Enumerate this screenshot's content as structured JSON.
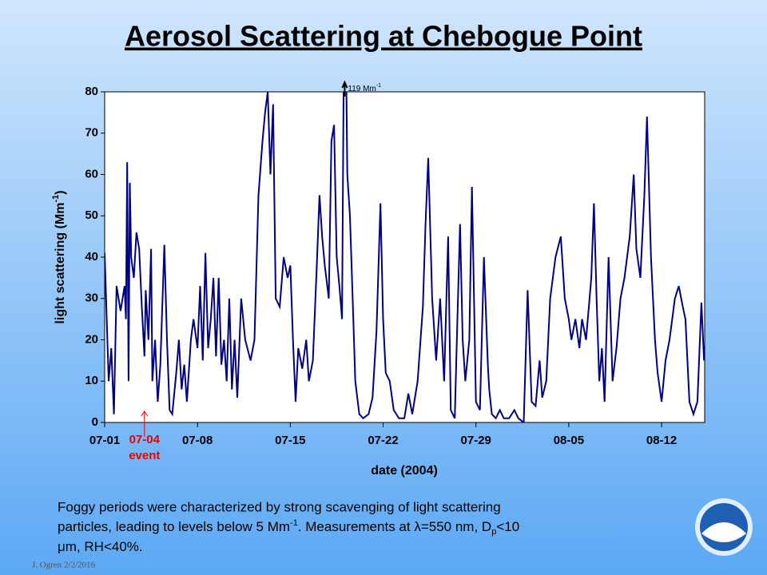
{
  "chart_data": {
    "type": "line",
    "title": "Aerosol Scattering at Chebogue Point",
    "y_label": [
      "light scattering (Mm",
      "-1",
      ")"
    ],
    "x_label": "date (2004)",
    "xlim": [
      0,
      45.25
    ],
    "xticks": [
      {
        "value": 0,
        "label": "07-01"
      },
      {
        "value": 7,
        "label": "07-08"
      },
      {
        "value": 14,
        "label": "07-15"
      },
      {
        "value": 21,
        "label": "07-22"
      },
      {
        "value": 28,
        "label": "07-29"
      },
      {
        "value": 35,
        "label": "08-05"
      },
      {
        "value": 42,
        "label": "08-12"
      }
    ],
    "ylim": [
      0,
      80
    ],
    "yticks": [
      0,
      10,
      20,
      30,
      40,
      50,
      60,
      70,
      80
    ],
    "grid": false,
    "series": [
      {
        "color": "#000080",
        "x": [
          0,
          0.3,
          0.5,
          0.7,
          0.9,
          1.2,
          1.5,
          1.6,
          1.7,
          1.8,
          1.9,
          2.0,
          2.2,
          2.4,
          2.6,
          2.8,
          3,
          3.1,
          3.3,
          3.5,
          3.6,
          3.8,
          4,
          4.2,
          4.5,
          4.7,
          4.9,
          5.1,
          5.4,
          5.6,
          5.8,
          6,
          6.2,
          6.5,
          6.7,
          7,
          7.2,
          7.4,
          7.6,
          7.8,
          8,
          8.2,
          8.4,
          8.6,
          8.8,
          9,
          9.2,
          9.4,
          9.6,
          9.8,
          10,
          10.3,
          10.6,
          11,
          11.3,
          11.6,
          11.9,
          12.1,
          12.3,
          12.5,
          12.7,
          12.9,
          13.2,
          13.5,
          13.8,
          14,
          14.2,
          14.4,
          14.6,
          14.9,
          15.2,
          15.4,
          15.7,
          16,
          16.2,
          16.4,
          16.6,
          16.9,
          17.1,
          17.3,
          17.5,
          17.7,
          17.9,
          18.1,
          18.3,
          18.5,
          18.7,
          18.9,
          19.2,
          19.5,
          19.9,
          20.2,
          20.5,
          20.8,
          21,
          21.2,
          21.5,
          21.8,
          22.2,
          22.6,
          22.9,
          23.2,
          23.6,
          24,
          24.2,
          24.4,
          24.7,
          25,
          25.3,
          25.6,
          25.9,
          26.1,
          26.4,
          26.6,
          26.8,
          27,
          27.2,
          27.5,
          27.7,
          28,
          28.3,
          28.6,
          28.9,
          29,
          29.2,
          29.5,
          29.8,
          30.1,
          30.5,
          30.9,
          31.2,
          31.6,
          31.9,
          32.2,
          32.5,
          32.8,
          33,
          33.3,
          33.6,
          34,
          34.4,
          34.7,
          35,
          35.2,
          35.5,
          35.8,
          36,
          36.3,
          36.7,
          36.9,
          37.1,
          37.3,
          37.5,
          37.7,
          38,
          38.3,
          38.6,
          38.9,
          39.2,
          39.6,
          39.9,
          40.1,
          40.4,
          40.7,
          40.9,
          41.2,
          41.5,
          41.7,
          42,
          42.3,
          42.6,
          43,
          43.3,
          43.6,
          43.8,
          44.1,
          44.4,
          44.7,
          45,
          45.2
        ],
        "values": [
          41,
          10,
          18,
          2,
          33,
          27,
          33,
          25,
          63,
          10,
          58,
          40,
          35,
          46,
          42,
          28,
          16,
          32,
          20,
          42,
          10,
          20,
          5,
          14,
          43,
          20,
          3,
          2,
          12,
          20,
          8,
          14,
          5,
          20,
          25,
          18,
          33,
          15,
          41,
          18,
          25,
          35,
          16,
          35,
          14,
          20,
          10,
          30,
          8,
          20,
          6,
          30,
          20,
          15,
          20,
          55,
          68,
          75,
          80,
          60,
          77,
          30,
          28,
          40,
          35,
          38,
          20,
          5,
          18,
          13,
          20,
          10,
          15,
          38,
          55,
          45,
          38,
          30,
          68,
          72,
          40,
          33,
          25,
          119,
          60,
          50,
          30,
          10,
          2,
          1,
          2,
          6,
          22,
          53,
          25,
          12,
          10,
          3,
          1,
          1,
          7,
          2,
          10,
          28,
          48,
          64,
          30,
          15,
          30,
          10,
          45,
          3,
          1,
          25,
          48,
          20,
          10,
          20,
          57,
          5,
          3,
          40,
          14,
          8,
          2,
          1,
          3,
          1,
          1,
          3,
          1,
          0,
          32,
          5,
          4,
          15,
          6,
          10,
          30,
          40,
          45,
          30,
          25,
          20,
          25,
          18,
          25,
          20,
          35,
          53,
          30,
          10,
          18,
          5,
          40,
          10,
          18,
          30,
          35,
          45,
          60,
          42,
          35,
          55,
          74,
          40,
          20,
          12,
          5,
          15,
          20,
          30,
          33,
          28,
          25,
          5,
          2,
          5,
          29,
          15
        ]
      }
    ],
    "annotations": {
      "peak": [
        "119 Mm",
        "-1"
      ],
      "event": [
        "07-04",
        "event"
      ]
    },
    "caption": [
      "Foggy periods were characterized by strong scavenging of light scattering",
      "particles, leading to levels below 5 Mm",
      "-1",
      ".  Measurements at ",
      "λ",
      "=550 nm, D",
      "p",
      "<10",
      "μ",
      "m, RH<40%."
    ],
    "credit": "J. Ogren  2/2/2016"
  }
}
